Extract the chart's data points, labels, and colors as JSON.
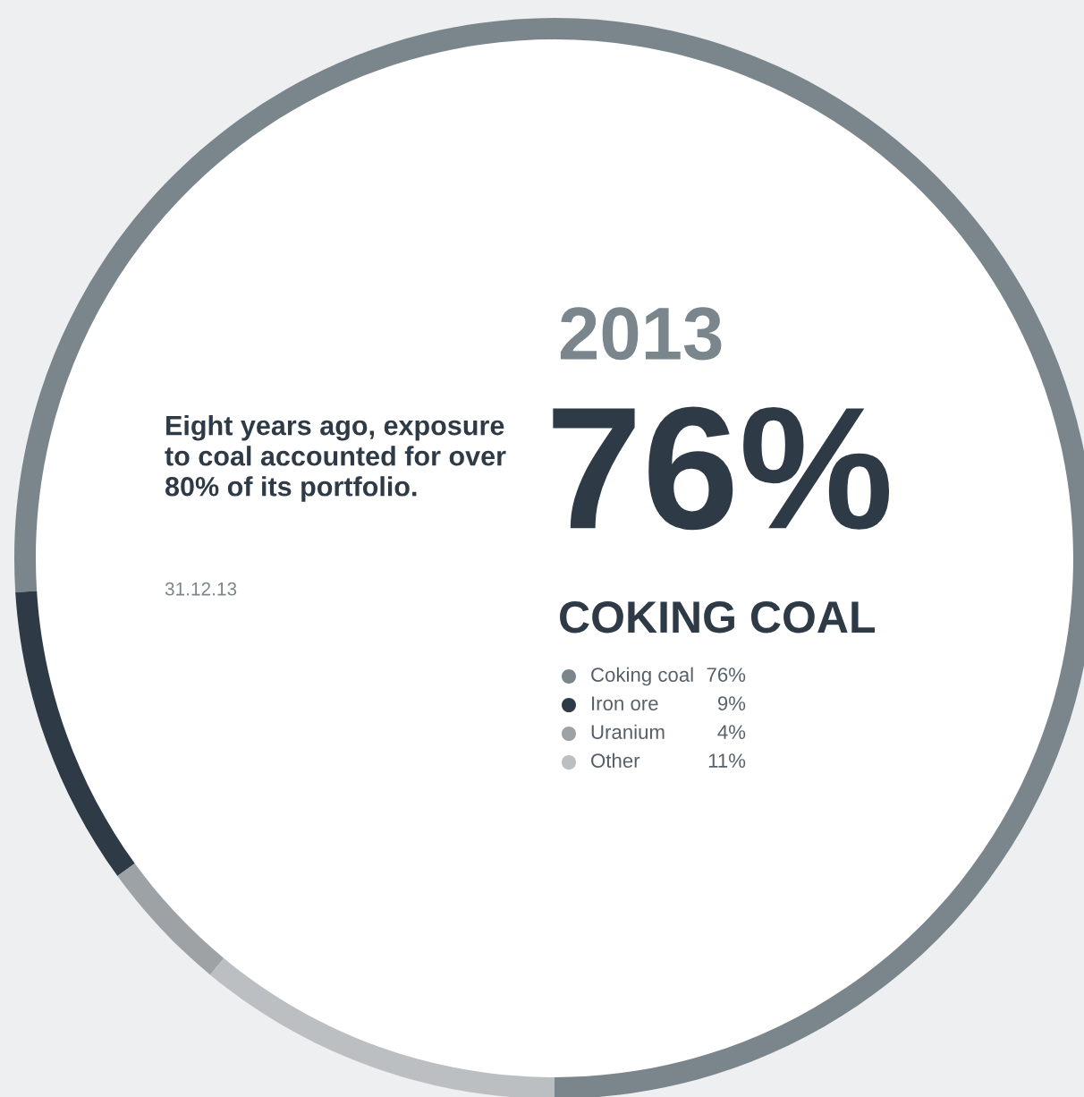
{
  "chart_data": {
    "type": "donut",
    "title": "2013",
    "categories": [
      "Coking coal",
      "Iron ore",
      "Uranium",
      "Other"
    ],
    "values": [
      76,
      9,
      4,
      11
    ],
    "value_labels": [
      "76%",
      "9%",
      "4%",
      "11%"
    ],
    "colors": [
      "#7b868c",
      "#2e3b46",
      "#9da2a6",
      "#bcbfc1"
    ],
    "legend": "right",
    "annotations": [
      "76%",
      "COKING COAL",
      "Eight years ago, exposure to coal accounted for over 80% of its portfolio.",
      "31.12.13"
    ]
  }
}
